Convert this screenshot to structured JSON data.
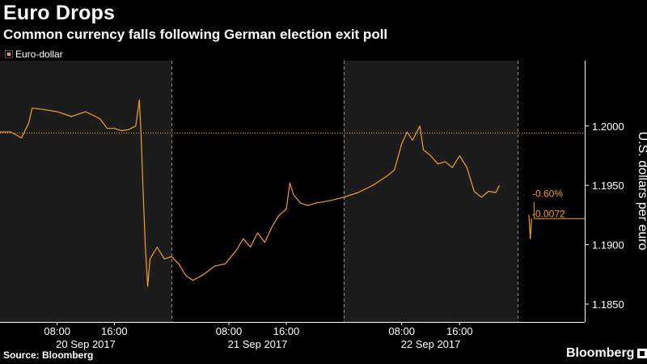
{
  "header": {
    "title": "Euro Drops",
    "subtitle": "Common currency falls following German election exit poll"
  },
  "footer": {
    "source": "Source: Bloomberg",
    "brand": "Bloomberg"
  },
  "colors": {
    "background": "#000000",
    "shaded_band": "#1c1c1c",
    "series": "#f59e2c",
    "text": "#ffffff"
  },
  "chart_data": {
    "type": "line",
    "title": "Euro Drops",
    "subtitle": "Common currency falls following German election exit poll",
    "ylabel": "U.S. dollars per euro",
    "ylim": [
      1.1835,
      1.2055
    ],
    "y_ticks": [
      1.185,
      1.19,
      1.195,
      1.2
    ],
    "y_tick_labels": [
      "1.1850",
      "1.1900",
      "1.1950",
      "1.2000"
    ],
    "grid": false,
    "legend": {
      "placement": "top-left",
      "entries": [
        "Euro-dollar"
      ]
    },
    "sessions": [
      {
        "date": "20 Sep 2017",
        "times": [
          "08:00",
          "16:00"
        ],
        "shaded": true
      },
      {
        "date": "21 Sep 2017",
        "times": [
          "08:00",
          "16:00"
        ],
        "shaded": false
      },
      {
        "date": "22 Sep 2017",
        "times": [
          "08:00",
          "16:00"
        ],
        "shaded": true
      }
    ],
    "reference_line": {
      "value": 1.1994,
      "style": "dotted"
    },
    "series": [
      {
        "name": "Euro-dollar",
        "segment": "main",
        "points": [
          [
            "20 Sep 00:00",
            1.1995
          ],
          [
            "20 Sep 01:30",
            1.1995
          ],
          [
            "20 Sep 03:00",
            1.199
          ],
          [
            "20 Sep 04:00",
            1.2002
          ],
          [
            "20 Sep 04:30",
            1.2015
          ],
          [
            "20 Sep 06:00",
            1.2014
          ],
          [
            "20 Sep 08:00",
            1.2012
          ],
          [
            "20 Sep 10:00",
            1.2008
          ],
          [
            "20 Sep 12:00",
            1.2012
          ],
          [
            "20 Sep 14:00",
            1.2006
          ],
          [
            "20 Sep 15:00",
            1.1998
          ],
          [
            "20 Sep 16:00",
            1.1998
          ],
          [
            "20 Sep 17:00",
            1.1996
          ],
          [
            "20 Sep 18:00",
            1.1997
          ],
          [
            "20 Sep 19:00",
            1.2
          ],
          [
            "20 Sep 19:30",
            1.2022
          ],
          [
            "20 Sep 19:45",
            1.1992
          ],
          [
            "20 Sep 20:00",
            1.195
          ],
          [
            "20 Sep 20:20",
            1.19
          ],
          [
            "20 Sep 20:40",
            1.1865
          ],
          [
            "20 Sep 21:00",
            1.1888
          ],
          [
            "20 Sep 22:00",
            1.1898
          ],
          [
            "20 Sep 23:00",
            1.1888
          ],
          [
            "21 Sep 00:00",
            1.189
          ],
          [
            "21 Sep 01:00",
            1.1884
          ],
          [
            "21 Sep 02:00",
            1.1874
          ],
          [
            "21 Sep 03:00",
            1.187
          ],
          [
            "21 Sep 04:30",
            1.1875
          ],
          [
            "21 Sep 06:00",
            1.1882
          ],
          [
            "21 Sep 07:30",
            1.1884
          ],
          [
            "21 Sep 09:00",
            1.1895
          ],
          [
            "21 Sep 10:00",
            1.1905
          ],
          [
            "21 Sep 11:00",
            1.1898
          ],
          [
            "21 Sep 12:00",
            1.191
          ],
          [
            "21 Sep 13:00",
            1.1902
          ],
          [
            "21 Sep 14:00",
            1.1915
          ],
          [
            "21 Sep 15:00",
            1.1925
          ],
          [
            "21 Sep 16:00",
            1.193
          ],
          [
            "21 Sep 16:30",
            1.1952
          ],
          [
            "21 Sep 17:00",
            1.1942
          ],
          [
            "21 Sep 18:00",
            1.1935
          ],
          [
            "21 Sep 19:00",
            1.1933
          ],
          [
            "21 Sep 20:00",
            1.1935
          ],
          [
            "21 Sep 22:00",
            1.1937
          ],
          [
            "22 Sep 00:00",
            1.194
          ],
          [
            "22 Sep 02:00",
            1.1944
          ],
          [
            "22 Sep 04:00",
            1.195
          ],
          [
            "22 Sep 06:00",
            1.1958
          ],
          [
            "22 Sep 07:00",
            1.1963
          ],
          [
            "22 Sep 08:00",
            1.1985
          ],
          [
            "22 Sep 08:45",
            1.1995
          ],
          [
            "22 Sep 09:30",
            1.1988
          ],
          [
            "22 Sep 10:30",
            1.2
          ],
          [
            "22 Sep 11:00",
            1.198
          ],
          [
            "22 Sep 12:00",
            1.1975
          ],
          [
            "22 Sep 13:00",
            1.1968
          ],
          [
            "22 Sep 14:00",
            1.197
          ],
          [
            "22 Sep 15:00",
            1.1965
          ],
          [
            "22 Sep 16:00",
            1.1975
          ],
          [
            "22 Sep 17:00",
            1.1965
          ],
          [
            "22 Sep 18:00",
            1.1945
          ],
          [
            "22 Sep 19:00",
            1.194
          ],
          [
            "22 Sep 20:00",
            1.1945
          ],
          [
            "22 Sep 21:00",
            1.1944
          ],
          [
            "22 Sep 21:30",
            1.195
          ]
        ]
      },
      {
        "name": "Euro-dollar",
        "segment": "after exit poll",
        "points": [
          [
            "25 Sep 00:00",
            1.1925
          ],
          [
            "25 Sep 00:10",
            1.1905
          ],
          [
            "25 Sep 00:20",
            1.1922
          ]
        ]
      }
    ],
    "annotations": [
      "-0.60%",
      "-0.0072"
    ]
  }
}
